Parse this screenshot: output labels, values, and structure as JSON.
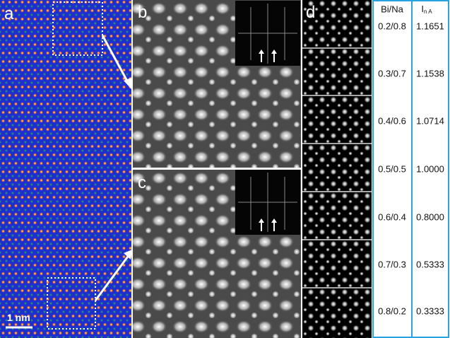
{
  "panels": {
    "a": {
      "label": "a",
      "scale_bar": "1 nm"
    },
    "b": {
      "label": "b"
    },
    "c": {
      "label": "c"
    },
    "d": {
      "label": "d"
    }
  },
  "table": {
    "header": {
      "ratio": "Bi/Na",
      "intensity": {
        "symbol": "I",
        "subscript": "n A"
      }
    },
    "rows": [
      [
        "0.2/0.8",
        "1.1651"
      ],
      [
        "0.3/0.7",
        "1.1538"
      ],
      [
        "0.4/0.6",
        "1.0714"
      ],
      [
        "0.5/0.5",
        "1.0000"
      ],
      [
        "0.6/0.4",
        "0.8000"
      ],
      [
        "0.7/0.3",
        "0.5333"
      ],
      [
        "0.8/0.2",
        "0.3333"
      ]
    ]
  }
}
